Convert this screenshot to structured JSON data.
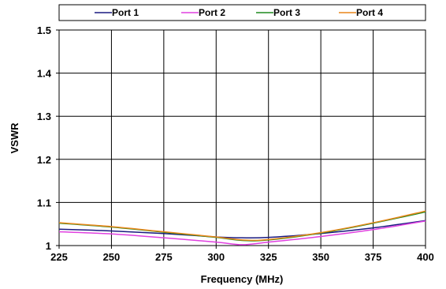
{
  "chart_data": {
    "type": "line",
    "title": "",
    "xlabel": "Frequency (MHz)",
    "ylabel": "VSWR",
    "xlim": [
      225,
      400
    ],
    "ylim": [
      1,
      1.5
    ],
    "x_ticks": [
      "225",
      "250",
      "275",
      "300",
      "325",
      "350",
      "375",
      "400"
    ],
    "y_ticks": [
      "1",
      "1.1",
      "1.2",
      "1.3",
      "1.4",
      "1.5"
    ],
    "grid": true,
    "legend_position": "top",
    "x": [
      225,
      250,
      275,
      300,
      312.5,
      325,
      350,
      375,
      400
    ],
    "series": [
      {
        "name": "Port 1",
        "color": "#1a1a80",
        "values": [
          1.038,
          1.034,
          1.028,
          1.02,
          1.018,
          1.019,
          1.028,
          1.041,
          1.058
        ]
      },
      {
        "name": "Port 2",
        "color": "#e040e0",
        "values": [
          1.032,
          1.027,
          1.018,
          1.008,
          1.002,
          1.008,
          1.021,
          1.037,
          1.057
        ]
      },
      {
        "name": "Port 3",
        "color": "#1f8a1f",
        "values": [
          1.052,
          1.043,
          1.031,
          1.019,
          1.012,
          1.013,
          1.029,
          1.052,
          1.078
        ]
      },
      {
        "name": "Port 4",
        "color": "#e8861a",
        "values": [
          1.053,
          1.044,
          1.032,
          1.02,
          1.013,
          1.014,
          1.03,
          1.053,
          1.08
        ]
      }
    ]
  }
}
